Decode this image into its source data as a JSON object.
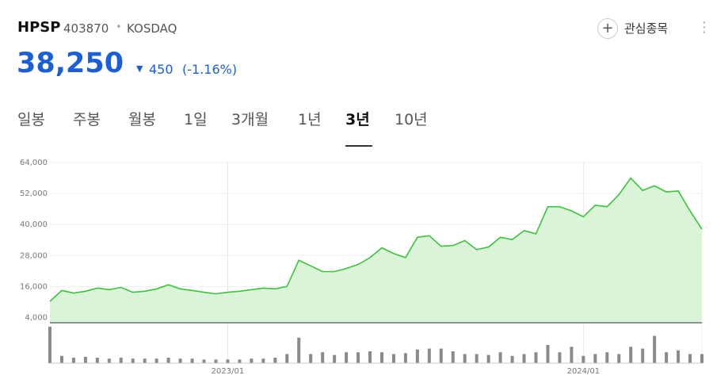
{
  "header": {
    "name": "HPSP",
    "code": "403870",
    "separator": "•",
    "market": "KOSDAQ",
    "watch": "관심종목"
  },
  "price": {
    "value": "38,250",
    "change": "450",
    "change_pct": "(-1.16%)"
  },
  "tabs": [
    "일봉",
    "주봉",
    "월봉",
    "1일",
    "3개월",
    "1년",
    "3년",
    "10년"
  ],
  "active_tab": 6,
  "chart_data": {
    "type": "area",
    "categories": [
      null,
      null,
      null,
      null,
      null,
      null,
      null,
      null,
      null,
      null,
      null,
      null,
      null,
      null,
      null,
      "2023/01",
      null,
      null,
      null,
      null,
      null,
      null,
      null,
      null,
      null,
      null,
      null,
      null,
      null,
      null,
      null,
      null,
      null,
      null,
      null,
      null,
      null,
      null,
      null,
      null,
      null,
      null,
      null,
      null,
      null,
      "2024/01",
      null,
      null,
      null,
      null,
      null,
      null,
      null,
      null,
      null,
      null
    ],
    "values": [
      10300,
      14500,
      13500,
      14200,
      15400,
      14800,
      15700,
      13800,
      14200,
      15100,
      16700,
      15100,
      14500,
      13800,
      13200,
      13800,
      14200,
      14800,
      15400,
      15100,
      16100,
      26200,
      24000,
      21800,
      21800,
      23000,
      24600,
      27200,
      31000,
      28800,
      27200,
      35100,
      35700,
      31600,
      31900,
      33800,
      30300,
      31300,
      35100,
      34200,
      37700,
      36400,
      46900,
      46900,
      45300,
      43000,
      47500,
      46900,
      51600,
      58000,
      53200,
      55000,
      52600,
      53000,
      45300,
      38250
    ],
    "volume": [
      40,
      8,
      6,
      7,
      6,
      5,
      6,
      5,
      5,
      5,
      6,
      5,
      5,
      4,
      4,
      4,
      4,
      5,
      5,
      6,
      10,
      28,
      10,
      12,
      9,
      12,
      12,
      13,
      12,
      10,
      11,
      15,
      16,
      16,
      13,
      10,
      10,
      9,
      12,
      8,
      10,
      12,
      20,
      12,
      18,
      8,
      10,
      12,
      10,
      18,
      16,
      30,
      12,
      14,
      10,
      10
    ],
    "ylim": [
      2000,
      64000
    ],
    "yticks": [
      {
        "value": 64000,
        "label": "64,000"
      },
      {
        "value": 52000,
        "label": "52,000"
      },
      {
        "value": 40000,
        "label": "40,000"
      },
      {
        "value": 28000,
        "label": "28,000"
      },
      {
        "value": 16000,
        "label": "16,000"
      },
      {
        "value": 4000,
        "label": "4,000"
      }
    ],
    "grid": true,
    "color": "#3cc23c",
    "fill": "#d9f4d6",
    "volume_color": "#8a8a8a"
  }
}
